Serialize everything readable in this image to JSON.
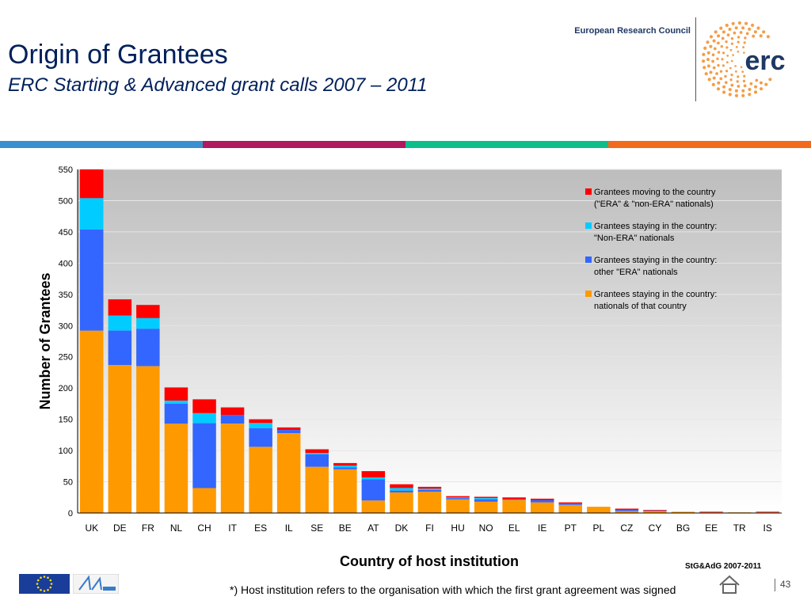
{
  "slide": {
    "title": "Origin of Grantees",
    "subtitle": "ERC Starting & Advanced grant calls 2007 – 2011",
    "org_name": "European Research Council",
    "logo_text": "erc",
    "stamp": "StG&AdG  2007-2011",
    "footnote": "*) Host institution refers to the organisation with which the first grant agreement was signed",
    "page_number": "43",
    "colors": {
      "title": "#00205b",
      "band": [
        "#3a8fce",
        "#b0195e",
        "#0cbf8a",
        "#f26a1b"
      ]
    }
  },
  "chart_data": {
    "type": "bar",
    "stacked": true,
    "title": "",
    "xlabel": "Country of host institution",
    "ylabel": "Number of Grantees",
    "ylim": [
      0,
      550
    ],
    "yticks": [
      0,
      50,
      100,
      150,
      200,
      250,
      300,
      350,
      400,
      450,
      500,
      550
    ],
    "grid": true,
    "legend_position": "top-right",
    "categories": [
      "UK",
      "DE",
      "FR",
      "NL",
      "CH",
      "IT",
      "ES",
      "IL",
      "SE",
      "BE",
      "AT",
      "DK",
      "FI",
      "HU",
      "NO",
      "EL",
      "IE",
      "PT",
      "PL",
      "CZ",
      "CY",
      "BG",
      "EE",
      "TR",
      "IS"
    ],
    "series": [
      {
        "name": "Grantees staying in the country: nationals of that country",
        "color": "#ff9900",
        "values": [
          292,
          237,
          235,
          143,
          40,
          143,
          106,
          128,
          74,
          70,
          20,
          33,
          34,
          22,
          18,
          21,
          17,
          13,
          10,
          3,
          3,
          2,
          1,
          1,
          1
        ]
      },
      {
        "name": "Grantees staying in the country: other \"ERA\" nationals",
        "color": "#3366ff",
        "values": [
          162,
          55,
          60,
          32,
          104,
          14,
          30,
          5,
          20,
          3,
          34,
          3,
          3,
          2,
          4,
          1,
          4,
          2,
          0,
          2,
          1,
          0,
          0,
          0,
          0
        ]
      },
      {
        "name": "Grantees staying in the country: \"Non-ERA\" nationals",
        "color": "#00ccff",
        "values": [
          50,
          24,
          17,
          5,
          16,
          0,
          8,
          0,
          2,
          3,
          3,
          4,
          2,
          1,
          2,
          0,
          0,
          0,
          0,
          0,
          0,
          0,
          0,
          0,
          0
        ]
      },
      {
        "name": "Grantees moving to the country (\"ERA\" & \"non-ERA\" nationals)",
        "color": "#ff0000",
        "values": [
          46,
          26,
          21,
          21,
          22,
          12,
          6,
          4,
          6,
          4,
          10,
          6,
          3,
          2,
          2,
          3,
          2,
          2,
          0,
          2,
          1,
          0,
          1,
          0,
          1
        ]
      }
    ],
    "legend": [
      {
        "line1": "Grantees moving to the country",
        "line2": "(\"ERA\" & \"non-ERA\" nationals)",
        "color": "#ff0000"
      },
      {
        "line1": "Grantees staying in the country:",
        "line2": "\"Non-ERA\" nationals",
        "color": "#00ccff"
      },
      {
        "line1": "Grantees staying in the country:",
        "line2": "other \"ERA\" nationals",
        "color": "#3366ff"
      },
      {
        "line1": "Grantees staying in the country:",
        "line2": "nationals of that country",
        "color": "#ff9900"
      }
    ]
  }
}
